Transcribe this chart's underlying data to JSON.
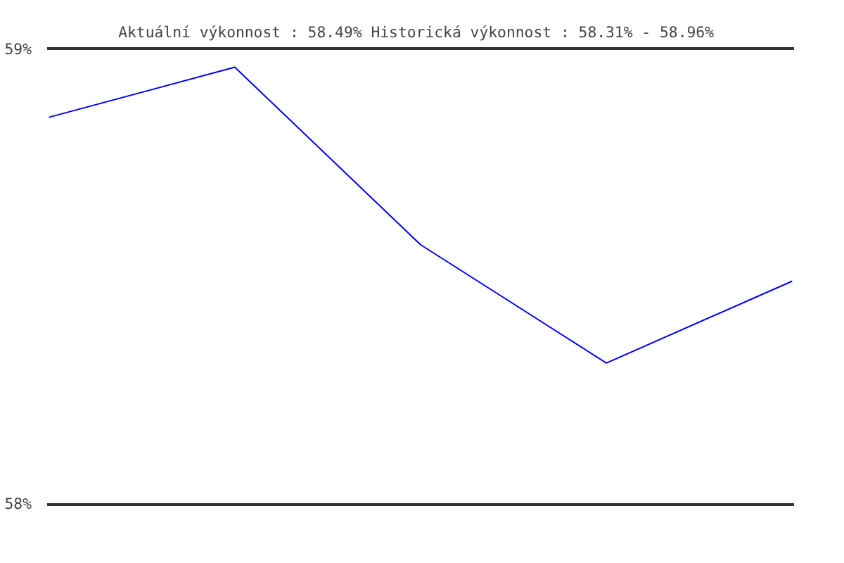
{
  "chart_data": {
    "type": "line",
    "title": "Aktuální výkonnost : 58.49%  Historická výkonnost : 58.31% - 58.96%",
    "categories": [
      null,
      null,
      null,
      null,
      null
    ],
    "series": [
      {
        "color": "#0000ff",
        "values": [
          58.85,
          58.96,
          58.57,
          58.31,
          58.49
        ]
      }
    ],
    "ylim": [
      57.999,
      59.001
    ],
    "yticks": [
      {
        "value": 58,
        "label": "58%"
      },
      {
        "value": 59,
        "label": "59%"
      }
    ],
    "grid": "y",
    "tick_labels": "y",
    "marker": "none",
    "line_style": "solid"
  }
}
